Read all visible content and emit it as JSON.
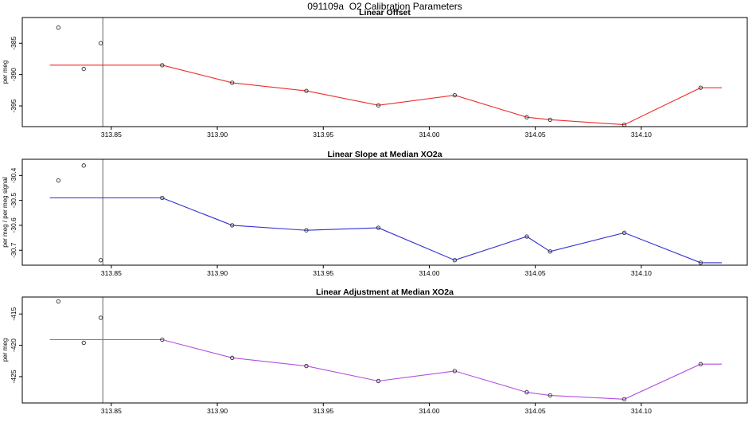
{
  "page": {
    "title": "091109a  O2 Calibration Parameters"
  },
  "style": {
    "vline_color": "#7d7d7d",
    "marker_color": "#2e2e2e",
    "axis_color": "#000000",
    "background": "#ffffff"
  },
  "chart_data": [
    {
      "type": "line",
      "title": "Linear Offset",
      "xlabel": "",
      "ylabel": "per meg",
      "color": "#ee2c2c",
      "legend": "none",
      "grid": false,
      "xlim": [
        313.808,
        314.15
      ],
      "ylim": [
        -398.3,
        -380.9
      ],
      "xticks": [
        313.85,
        313.9,
        313.95,
        314.0,
        314.05,
        314.1
      ],
      "xtick_labels": [
        "313.85",
        "313.90",
        "313.95",
        "314.00",
        "314.05",
        "314.10"
      ],
      "yticks": [
        -385,
        -390,
        -395
      ],
      "ytick_labels": [
        "-385",
        "-390",
        "-395"
      ],
      "vline_x": 313.846,
      "line": {
        "x": [
          313.874,
          313.907,
          313.942,
          313.976,
          314.012,
          314.046,
          314.057,
          314.092,
          314.128
        ],
        "y": [
          -388.5,
          -391.3,
          -392.6,
          -394.9,
          -393.3,
          -396.8,
          -397.2,
          -398.0,
          -392.1
        ],
        "flat_start_x": 313.821,
        "flat_end_x": 314.138
      },
      "outliers": [
        {
          "x": 313.825,
          "y": -382.5
        },
        {
          "x": 313.837,
          "y": -389.1
        },
        {
          "x": 313.845,
          "y": -385.0
        }
      ]
    },
    {
      "type": "line",
      "title": "Linear Slope at Median XO2a",
      "xlabel": "",
      "ylabel": "per meg / per meg signal",
      "color": "#2f2fd3",
      "legend": "none",
      "grid": false,
      "xlim": [
        313.808,
        314.15
      ],
      "ylim": [
        -30.76,
        -30.335
      ],
      "xticks": [
        313.85,
        313.9,
        313.95,
        314.0,
        314.05,
        314.1
      ],
      "xtick_labels": [
        "313.85",
        "313.90",
        "313.95",
        "314.00",
        "314.05",
        "314.10"
      ],
      "yticks": [
        -30.4,
        -30.5,
        -30.6,
        -30.7
      ],
      "ytick_labels": [
        "-30.4",
        "-30.5",
        "-30.6",
        "-30.7"
      ],
      "vline_x": 313.846,
      "line": {
        "x": [
          313.874,
          313.907,
          313.942,
          313.976,
          314.012,
          314.046,
          314.057,
          314.092,
          314.128
        ],
        "y": [
          -30.49,
          -30.6,
          -30.62,
          -30.61,
          -30.74,
          -30.645,
          -30.705,
          -30.63,
          -30.75
        ],
        "flat_start_x": 313.821,
        "flat_end_x": 314.138
      },
      "outliers": [
        {
          "x": 313.825,
          "y": -30.42
        },
        {
          "x": 313.837,
          "y": -30.36
        },
        {
          "x": 313.845,
          "y": -30.74
        }
      ]
    },
    {
      "type": "line",
      "title": "Linear Adjustment at Median XO2a",
      "xlabel": "",
      "ylabel": "per meg",
      "color": "#b44fe0",
      "legend": "none",
      "grid": false,
      "xlim": [
        313.808,
        314.15
      ],
      "ylim": [
        -429.2,
        -412.3
      ],
      "xticks": [
        313.85,
        313.9,
        313.95,
        314.0,
        314.05,
        314.1
      ],
      "xtick_labels": [
        "313.85",
        "313.90",
        "313.95",
        "314.00",
        "314.05",
        "314.10"
      ],
      "yticks": [
        -415,
        -420,
        -425
      ],
      "ytick_labels": [
        "-415",
        "-420",
        "-425"
      ],
      "vline_x": 313.846,
      "line": {
        "x": [
          313.874,
          313.907,
          313.942,
          313.976,
          314.012,
          314.046,
          314.057,
          314.092,
          314.128
        ],
        "y": [
          -419.1,
          -422.0,
          -423.3,
          -425.7,
          -424.1,
          -427.5,
          -428.0,
          -428.6,
          -423.0
        ],
        "flat_start_x": 313.821,
        "flat_end_x": 314.138
      },
      "outliers": [
        {
          "x": 313.825,
          "y": -413.0
        },
        {
          "x": 313.837,
          "y": -419.6
        },
        {
          "x": 313.845,
          "y": -415.6
        }
      ]
    }
  ]
}
